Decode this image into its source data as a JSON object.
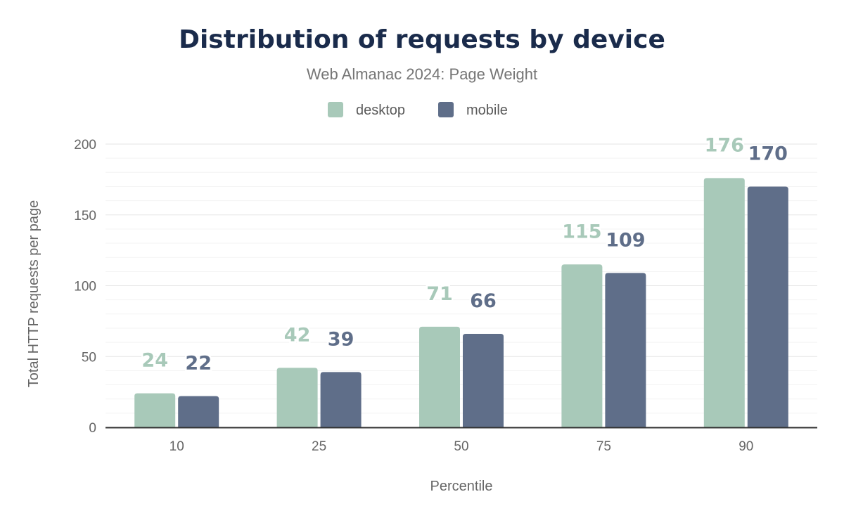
{
  "chart_data": {
    "type": "bar",
    "title": "Distribution of requests by device",
    "subtitle": "Web Almanac 2024: Page Weight",
    "xlabel": "Percentile",
    "ylabel": "Total HTTP requests per page",
    "categories": [
      "10",
      "25",
      "50",
      "75",
      "90"
    ],
    "series": [
      {
        "name": "desktop",
        "color": "#a8c9b9",
        "values": [
          24,
          42,
          71,
          115,
          176
        ]
      },
      {
        "name": "mobile",
        "color": "#5f6e89",
        "values": [
          22,
          39,
          66,
          109,
          170
        ]
      }
    ],
    "ylim": [
      0,
      200
    ],
    "yticks": [
      0,
      50,
      100,
      150,
      200
    ],
    "grid": true,
    "legend": "top-center",
    "data_labels": true
  }
}
